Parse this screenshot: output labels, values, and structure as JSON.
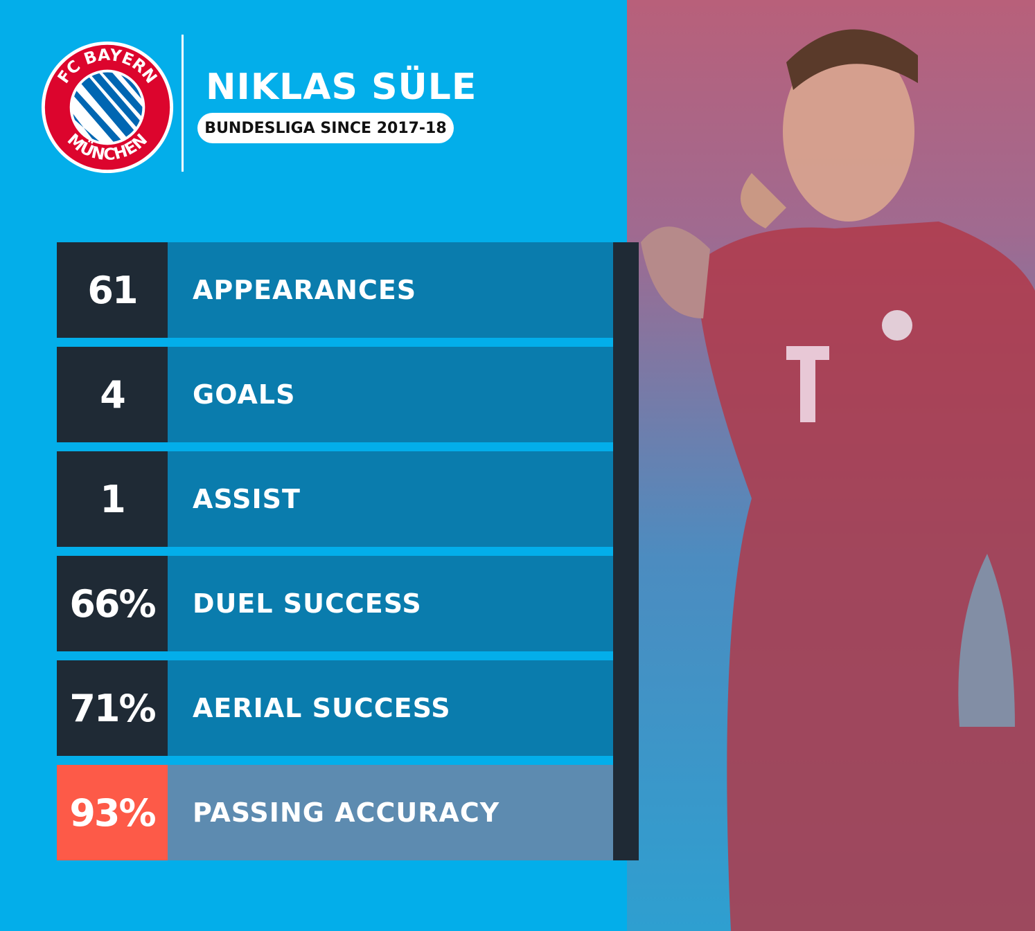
{
  "header": {
    "club_logo_text_top": "FC BAYERN",
    "club_logo_text_bottom": "MÜNCHEN",
    "player_name": "NIKLAS SÜLE",
    "subtitle": "BUNDESLIGA SINCE 2017-18"
  },
  "stats": [
    {
      "value": "61",
      "label": "APPEARANCES"
    },
    {
      "value": "4",
      "label": "GOALS"
    },
    {
      "value": "1",
      "label": "ASSIST"
    },
    {
      "value": "66%",
      "label": "DUEL SUCCESS"
    },
    {
      "value": "71%",
      "label": "AERIAL SUCCESS"
    },
    {
      "value": "93%",
      "label": "PASSING ACCURACY",
      "highlight": true
    }
  ],
  "colors": {
    "background": "#03aeea",
    "number_box": "#1f2a35",
    "label_box": "#0a7cad",
    "highlight_number": "#fd5a48",
    "highlight_label": "#5d8bb0",
    "club_red": "#dc052d",
    "club_blue": "#0066b2"
  }
}
